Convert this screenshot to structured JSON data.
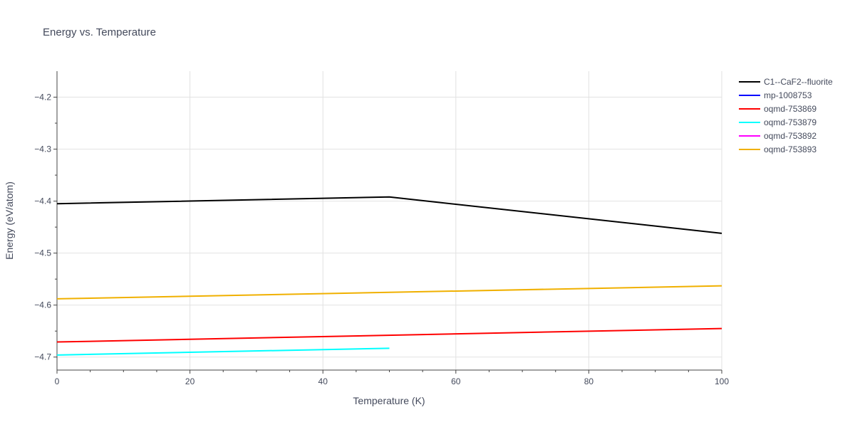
{
  "chart_data": {
    "type": "line",
    "title": "Energy vs. Temperature",
    "xlabel": "Temperature (K)",
    "ylabel": "Energy (eV/atom)",
    "xlim": [
      0,
      100
    ],
    "ylim": [
      -4.725,
      -4.15
    ],
    "xticks": [
      0,
      20,
      40,
      60,
      80,
      100
    ],
    "xtick_labels": [
      "0",
      "20",
      "40",
      "60",
      "80",
      "100"
    ],
    "yticks": [
      -4.2,
      -4.3,
      -4.4,
      -4.5,
      -4.6,
      -4.7
    ],
    "ytick_labels": [
      "−4.2",
      "−4.3",
      "−4.4",
      "−4.5",
      "−4.6",
      "−4.7"
    ],
    "grid": true,
    "legend_position": "top-right",
    "series": [
      {
        "name": "C1--CaF2--fluorite",
        "color": "#000000",
        "x": [
          0,
          50,
          100
        ],
        "y": [
          -4.405,
          -4.392,
          -4.462
        ]
      },
      {
        "name": "mp-1008753",
        "color": "#0000ff",
        "x": [],
        "y": []
      },
      {
        "name": "oqmd-753869",
        "color": "#ff0000",
        "x": [
          0,
          100
        ],
        "y": [
          -4.671,
          -4.645
        ]
      },
      {
        "name": "oqmd-753879",
        "color": "#00ffff",
        "x": [
          0,
          50
        ],
        "y": [
          -4.696,
          -4.683
        ]
      },
      {
        "name": "oqmd-753892",
        "color": "#ff00ff",
        "x": [],
        "y": []
      },
      {
        "name": "oqmd-753893",
        "color": "#f0b000",
        "x": [
          0,
          100
        ],
        "y": [
          -4.588,
          -4.563
        ]
      }
    ]
  }
}
